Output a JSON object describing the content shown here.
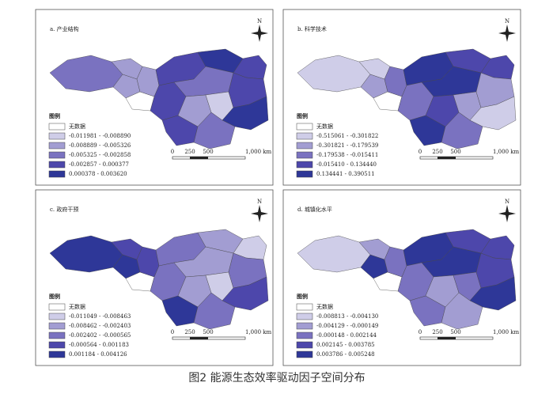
{
  "caption": "图2 能源生态效率驱动因子空间分布",
  "panels": [
    {
      "title": "a. 产业结构",
      "north": "N",
      "legend_title": "图例",
      "legend": [
        "无数据",
        "-0.011981 - -0.008890",
        "-0.008889 - -0.005326",
        "-0.005325 - -0.002858",
        "-0.002857 - 0.000377",
        "0.000378 - 0.003620"
      ],
      "scale_labels": [
        "0",
        "250",
        "500",
        "1,000 km"
      ]
    },
    {
      "title": "b. 科学技术",
      "north": "N",
      "legend_title": "图例",
      "legend": [
        "无数据",
        "-0.515061 - -0.301822",
        "-0.301821 - -0.179539",
        "-0.179538 - -0.015411",
        "-0.015410 - 0.134440",
        "0.134441 - 0.390511"
      ],
      "scale_labels": [
        "0",
        "250",
        "500",
        "1,000 km"
      ]
    },
    {
      "title": "c. 政府干预",
      "north": "N",
      "legend_title": "图例",
      "legend": [
        "无数据",
        "-0.011049 - -0.008463",
        "-0.008462 - -0.002403",
        "-0.002402 - -0.000565",
        "-0.000564 - 0.001183",
        "0.001184 - 0.004126"
      ],
      "scale_labels": [
        "0",
        "250",
        "500",
        "1,000 km"
      ]
    },
    {
      "title": "d. 城镇化水平",
      "north": "N",
      "legend_title": "图例",
      "legend": [
        "无数据",
        "-0.008813 - -0.004130",
        "-0.004129 - -0.000149",
        "-0.000148 - 0.002144",
        "0.002145 - 0.003785",
        "0.003786 - 0.005248"
      ],
      "scale_labels": [
        "0",
        "250",
        "500",
        "1,000 km"
      ]
    }
  ]
}
